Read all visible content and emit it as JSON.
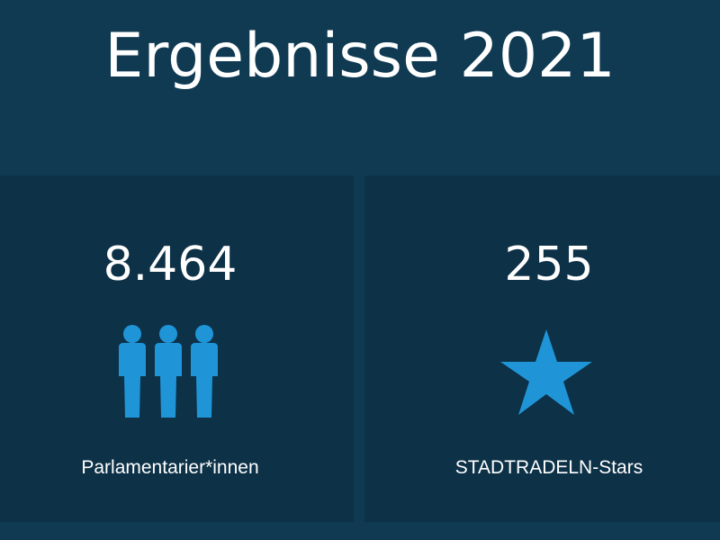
{
  "title": "Ergebnisse 2021",
  "colors": {
    "background": "#0f3a52",
    "card": "#0d3147",
    "accent": "#1f95d8",
    "text": "#ffffff"
  },
  "stats": [
    {
      "value": "8.464",
      "icon": "people-icon",
      "label": "Parlamentarier*innen"
    },
    {
      "value": "255",
      "icon": "star-icon",
      "label": "STADTRADELN-Stars"
    }
  ]
}
